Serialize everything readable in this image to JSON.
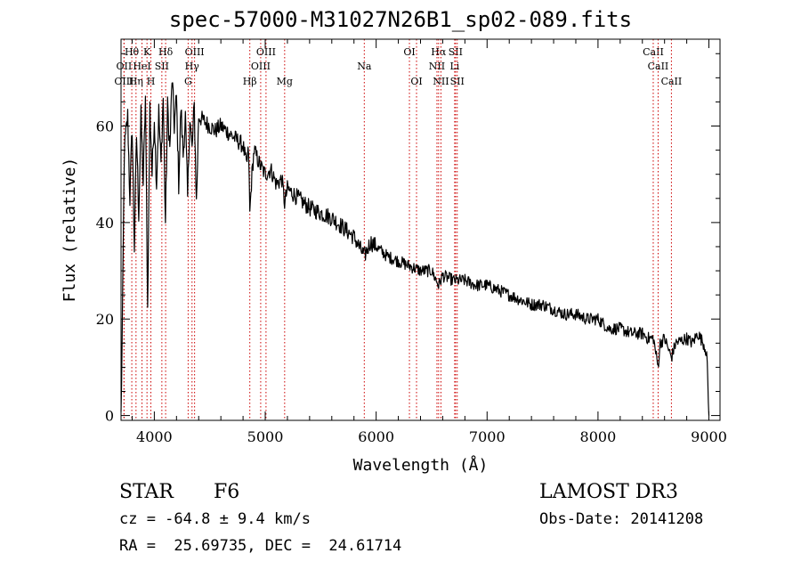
{
  "chart_data": {
    "type": "line",
    "title": "spec-57000-M31027N26B1_sp02-089.fits",
    "xlabel": "Wavelength (Å)",
    "ylabel": "Flux (relative)",
    "xlim": [
      3700,
      9100
    ],
    "ylim": [
      -1,
      78
    ],
    "x_ticks": [
      4000,
      5000,
      6000,
      7000,
      8000,
      9000
    ],
    "y_ticks": [
      0,
      20,
      40,
      60
    ],
    "grid": false,
    "series": [
      {
        "name": "spectrum",
        "x": [
          3700,
          3710,
          3730,
          3760,
          3780,
          3800,
          3820,
          3840,
          3860,
          3880,
          3900,
          3920,
          3940,
          3960,
          3980,
          4000,
          4020,
          4040,
          4060,
          4080,
          4100,
          4120,
          4140,
          4160,
          4180,
          4200,
          4220,
          4240,
          4260,
          4280,
          4300,
          4320,
          4340,
          4360,
          4380,
          4400,
          4450,
          4500,
          4550,
          4600,
          4650,
          4700,
          4750,
          4800,
          4830,
          4850,
          4861,
          4880,
          4900,
          4950,
          5000,
          5050,
          5100,
          5150,
          5175,
          5200,
          5250,
          5300,
          5400,
          5500,
          5600,
          5700,
          5800,
          5893,
          5950,
          6000,
          6100,
          6200,
          6300,
          6400,
          6500,
          6563,
          6600,
          6700,
          6800,
          6900,
          7000,
          7100,
          7200,
          7300,
          7400,
          7500,
          7600,
          7700,
          7800,
          7900,
          8000,
          8050,
          8100,
          8200,
          8300,
          8400,
          8450,
          8500,
          8542,
          8560,
          8600,
          8662,
          8700,
          8800,
          8850,
          8900,
          8950,
          8980,
          9000
        ],
        "values": [
          0,
          15,
          55,
          62,
          45,
          60,
          35,
          58,
          42,
          62,
          48,
          66,
          22,
          64,
          50,
          62,
          48,
          63,
          52,
          66,
          40,
          64,
          55,
          70,
          60,
          66,
          48,
          64,
          54,
          62,
          45,
          62,
          55,
          64,
          44,
          62,
          61,
          60,
          59,
          60,
          59,
          58,
          57,
          56,
          52,
          55,
          42,
          50,
          55,
          52,
          50,
          51,
          48,
          49,
          44,
          47,
          46,
          45,
          43,
          42,
          41,
          39,
          37,
          33,
          36,
          35,
          33,
          32,
          31,
          30,
          30,
          27,
          29,
          28,
          28,
          27,
          27,
          26,
          25,
          24,
          23,
          23,
          22,
          21,
          21,
          20,
          20,
          19,
          18,
          18,
          17,
          17,
          16,
          16,
          10,
          15,
          16,
          12,
          15,
          16,
          15,
          17,
          15,
          13,
          0
        ]
      }
    ],
    "line_markers": [
      {
        "label": "Hθ",
        "x": 3797,
        "row": 1
      },
      {
        "label": "OII",
        "x": 3727,
        "row": 2
      },
      {
        "label": "OIII",
        "x": 3727,
        "row": 3
      },
      {
        "label": "HeI",
        "x": 3889,
        "row": 2
      },
      {
        "label": "Hη",
        "x": 3835,
        "row": 3
      },
      {
        "label": "K",
        "x": 3934,
        "row": 1
      },
      {
        "label": "H",
        "x": 3969,
        "row": 3
      },
      {
        "label": "SII",
        "x": 4068,
        "row": 2
      },
      {
        "label": "Hδ",
        "x": 4102,
        "row": 1
      },
      {
        "label": "OIII",
        "x": 4363,
        "row": 1
      },
      {
        "label": "Hγ",
        "x": 4340,
        "row": 2
      },
      {
        "label": "G",
        "x": 4305,
        "row": 3
      },
      {
        "label": "Hβ",
        "x": 4861,
        "row": 3
      },
      {
        "label": "OIII",
        "x": 5007,
        "row": 1
      },
      {
        "label": "OIII",
        "x": 4959,
        "row": 2
      },
      {
        "label": "Mg",
        "x": 5175,
        "row": 3
      },
      {
        "label": "Na",
        "x": 5893,
        "row": 2
      },
      {
        "label": "OI",
        "x": 6300,
        "row": 1
      },
      {
        "label": "OI",
        "x": 6364,
        "row": 3
      },
      {
        "label": "Hα",
        "x": 6563,
        "row": 1
      },
      {
        "label": "SII",
        "x": 6716,
        "row": 1
      },
      {
        "label": "NII",
        "x": 6548,
        "row": 2
      },
      {
        "label": "Li",
        "x": 6708,
        "row": 2
      },
      {
        "label": "NII",
        "x": 6584,
        "row": 3
      },
      {
        "label": "SII",
        "x": 6731,
        "row": 3
      },
      {
        "label": "CaII",
        "x": 8498,
        "row": 1
      },
      {
        "label": "CaII",
        "x": 8542,
        "row": 2
      },
      {
        "label": "CaII",
        "x": 8662,
        "row": 3
      }
    ]
  },
  "info": {
    "class_label": "STAR",
    "subclass": "F6",
    "survey": "LAMOST DR3",
    "redshift": "cz = -64.8 ± 9.4 km/s",
    "obs_date": "Obs-Date: 20141208",
    "coords": "RA =  25.69735, DEC =  24.61714"
  },
  "colors": {
    "spectrum": "#000000",
    "markers": "#cc0000",
    "axes": "#000000"
  }
}
